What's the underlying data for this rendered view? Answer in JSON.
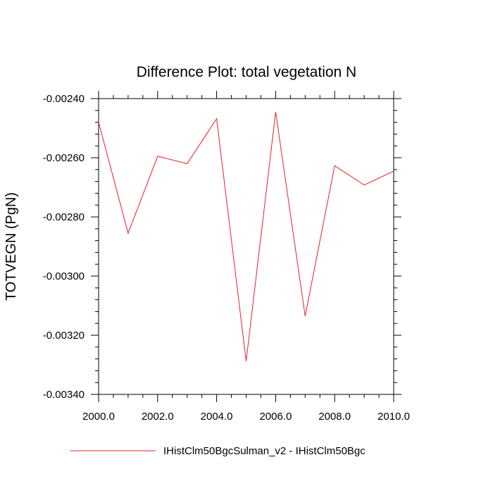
{
  "chart_data": {
    "type": "line",
    "title": "Difference Plot: total vegetation N",
    "xlabel": "",
    "ylabel": "TOTVEGN  (PgN)",
    "x": [
      2000,
      2001,
      2002,
      2003,
      2004,
      2005,
      2006,
      2007,
      2008,
      2009,
      2010
    ],
    "xlim": [
      2000,
      2010
    ],
    "ylim": [
      -0.0034,
      -0.0024
    ],
    "xticks": [
      2000,
      2002,
      2004,
      2006,
      2008,
      2010
    ],
    "xtick_labels": [
      "2000.0",
      "2002.0",
      "2004.0",
      "2006.0",
      "2008.0",
      "2010.0"
    ],
    "yticks": [
      -0.0024,
      -0.0026,
      -0.0028,
      -0.003,
      -0.0032,
      -0.0034
    ],
    "ytick_labels": [
      "-0.00240",
      "-0.00260",
      "-0.00280",
      "-0.00300",
      "-0.00320",
      "-0.00340"
    ],
    "grid": false,
    "legend_position": "bottom",
    "series": [
      {
        "name": "IHistClm50BgcSulman_v2 - IHistClm50Bgc",
        "color": "#ee1c25",
        "values": [
          -0.00248,
          -0.002855,
          -0.002595,
          -0.00262,
          -0.002468,
          -0.003288,
          -0.002445,
          -0.003135,
          -0.002627,
          -0.002692,
          -0.002645
        ]
      }
    ]
  }
}
